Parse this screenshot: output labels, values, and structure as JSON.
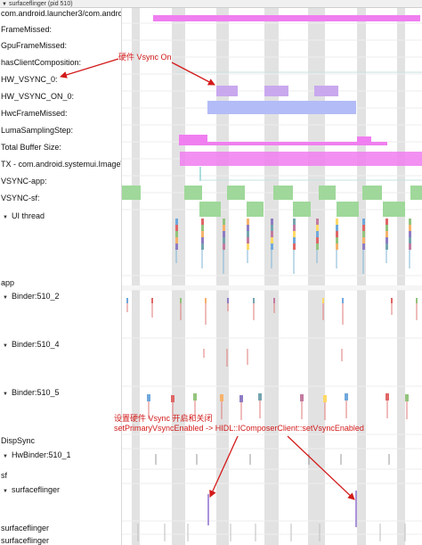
{
  "window": {
    "title": "surfaceflinger (pid 510)"
  },
  "tracks": [
    {
      "id": "launcher",
      "label": "com.android.launcher3/com.andro",
      "expandable": false
    },
    {
      "id": "framemissed",
      "label": "FrameMissed:",
      "expandable": false
    },
    {
      "id": "gpuframemissed",
      "label": "GpuFrameMissed:",
      "expandable": false
    },
    {
      "id": "hasclientcomp",
      "label": "hasClientComposition:",
      "expandable": false
    },
    {
      "id": "hwvsync0",
      "label": "HW_VSYNC_0:",
      "expandable": false
    },
    {
      "id": "hwvsyncon0",
      "label": "HW_VSYNC_ON_0:",
      "expandable": false
    },
    {
      "id": "hwcframemissed",
      "label": "HwcFrameMissed:",
      "expandable": false
    },
    {
      "id": "lumasampling",
      "label": "LumaSamplingStep:",
      "expandable": false
    },
    {
      "id": "totalbuffer",
      "label": "Total Buffer Size:",
      "expandable": false
    },
    {
      "id": "txsystemui",
      "label": "TX - com.android.systemui.Image\\",
      "expandable": false
    },
    {
      "id": "vsyncapp",
      "label": "VSYNC-app:",
      "expandable": false
    },
    {
      "id": "vsyncsf",
      "label": "VSYNC-sf:",
      "expandable": false
    },
    {
      "id": "uithread",
      "label": "UI thread",
      "expandable": true
    },
    {
      "id": "app",
      "label": "app",
      "expandable": false
    },
    {
      "id": "binder2",
      "label": "Binder:510_2",
      "expandable": true
    },
    {
      "id": "binder4",
      "label": "Binder:510_4",
      "expandable": true
    },
    {
      "id": "binder5",
      "label": "Binder:510_5",
      "expandable": true
    },
    {
      "id": "dispsync",
      "label": "DispSync",
      "expandable": false
    },
    {
      "id": "hwbinder",
      "label": "HwBinder:510_1",
      "expandable": true
    },
    {
      "id": "sf",
      "label": "sf",
      "expandable": false
    },
    {
      "id": "surfaceflinger1",
      "label": "surfaceflinger",
      "expandable": true
    },
    {
      "id": "surfaceflinger2",
      "label": "surfaceflinger",
      "expandable": false
    },
    {
      "id": "surfaceflinger3",
      "label": "surfaceflinger",
      "expandable": false
    }
  ],
  "annotations": {
    "hw_vsync_on": "硬件 Vsync On",
    "set_vsync_line1": "设置硬件 Vsync 开启和关闭",
    "set_vsync_line2": "setPrimaryVsyncEnabled -> HIDL::IComposerClient::setVsyncEnabled"
  },
  "colors": {
    "annotation": "#d31a1a",
    "vsync_column": "#e2e2e2",
    "pink": "#f07ef0",
    "lavender": "#c9a8ee",
    "periwinkle": "#b3bcf7",
    "green": "#9fd89a",
    "teal": "#58bcc2"
  }
}
